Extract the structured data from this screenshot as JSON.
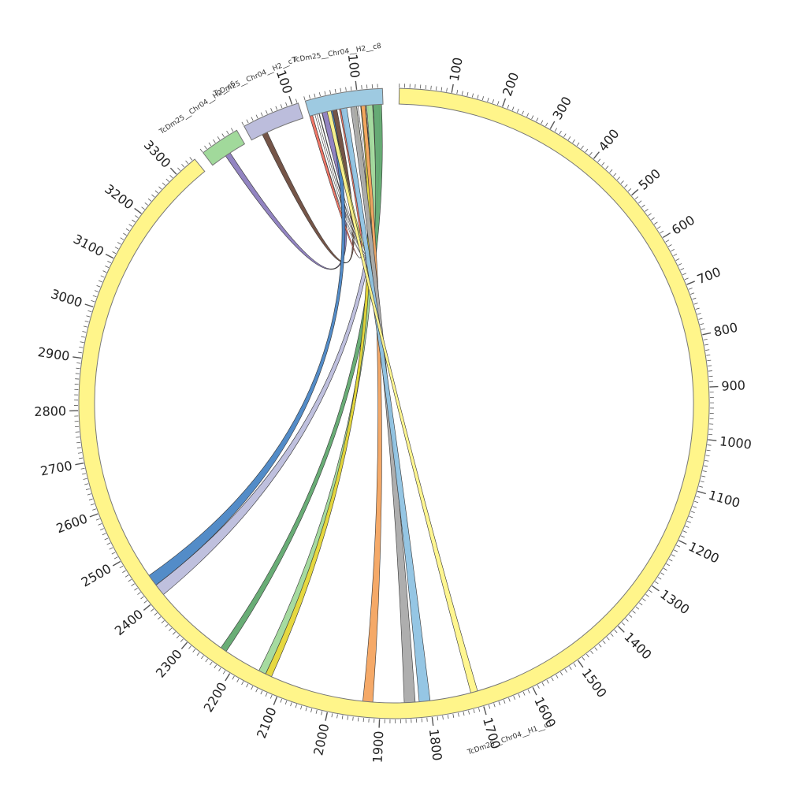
{
  "segments": [
    {
      "id": "h1c1",
      "name": "TcDm25__Chr04__H1__c1",
      "start": 10,
      "end": 3355,
      "color": "#fff58a",
      "label_interval": 100
    },
    {
      "id": "h2c6",
      "name": "TcDm25__Chr04__H2__c6",
      "start": 3375,
      "end": 3452,
      "color": "#a1d99b",
      "label_interval": 100
    },
    {
      "id": "h2c7",
      "name": "TcDm25__Chr04__H2__c7",
      "start": 3468,
      "end": 3580,
      "color": "#bcbddc",
      "label_interval": 100
    },
    {
      "id": "h2c8",
      "name": "TcDm25__Chr04__H2__c8",
      "start": 3594,
      "end": 3743,
      "color": "#9ecae1",
      "label_interval": 100
    }
  ],
  "ribbons": [
    {
      "a": [
        3407,
        3418
      ],
      "b": [
        3620,
        3632
      ],
      "color": "#8c7dbe"
    },
    {
      "a": [
        3492,
        3503
      ],
      "b": [
        3640,
        3650
      ],
      "color": "#6e4c3e"
    },
    {
      "a": [
        3594,
        3600
      ],
      "b": [
        3655,
        3662
      ],
      "color": "#f07060"
    },
    {
      "a": [
        3600,
        3605
      ],
      "b": [
        3693,
        3700
      ],
      "color": "#ffffff"
    },
    {
      "a": [
        3609,
        3613
      ],
      "b": [
        3700,
        3705
      ],
      "color": "#ffffff"
    },
    {
      "a": [
        3614,
        3619
      ],
      "b": [
        3708,
        3713
      ],
      "color": "#ffffff"
    },
    {
      "a": [
        3634,
        3640
      ],
      "b": [
        3684,
        3690
      ],
      "color": "#dbdb60"
    },
    {
      "a": [
        2433,
        2457
      ],
      "b": [
        3632,
        3641
      ],
      "color": "#4a86c5"
    },
    {
      "a": [
        2409,
        2433
      ],
      "b": [
        3723,
        3735
      ],
      "color": "#bcbddc"
    },
    {
      "a": [
        2239,
        2252
      ],
      "b": [
        3723,
        3740
      ],
      "color": "#61a96f"
    },
    {
      "a": [
        2148,
        2163
      ],
      "b": [
        3710,
        3722
      ],
      "color": "#a1d99b"
    },
    {
      "a": [
        2135,
        2148
      ],
      "b": [
        3698,
        3708
      ],
      "color": "#e5d636"
    },
    {
      "a": [
        1925,
        1945
      ],
      "b": [
        3699,
        3707
      ],
      "color": "#f4a460"
    },
    {
      "a": [
        1840,
        1862
      ],
      "b": [
        3678,
        3690
      ],
      "color": "#aaaaaa"
    },
    {
      "a": [
        1810,
        1832
      ],
      "b": [
        3658,
        3670
      ],
      "color": "#8fc3e3"
    },
    {
      "a": [
        1713,
        1727
      ],
      "b": [
        3630,
        3638
      ],
      "color": "#fff58a"
    }
  ],
  "colors": {
    "stroke": "#555555",
    "tick": "#555555"
  }
}
